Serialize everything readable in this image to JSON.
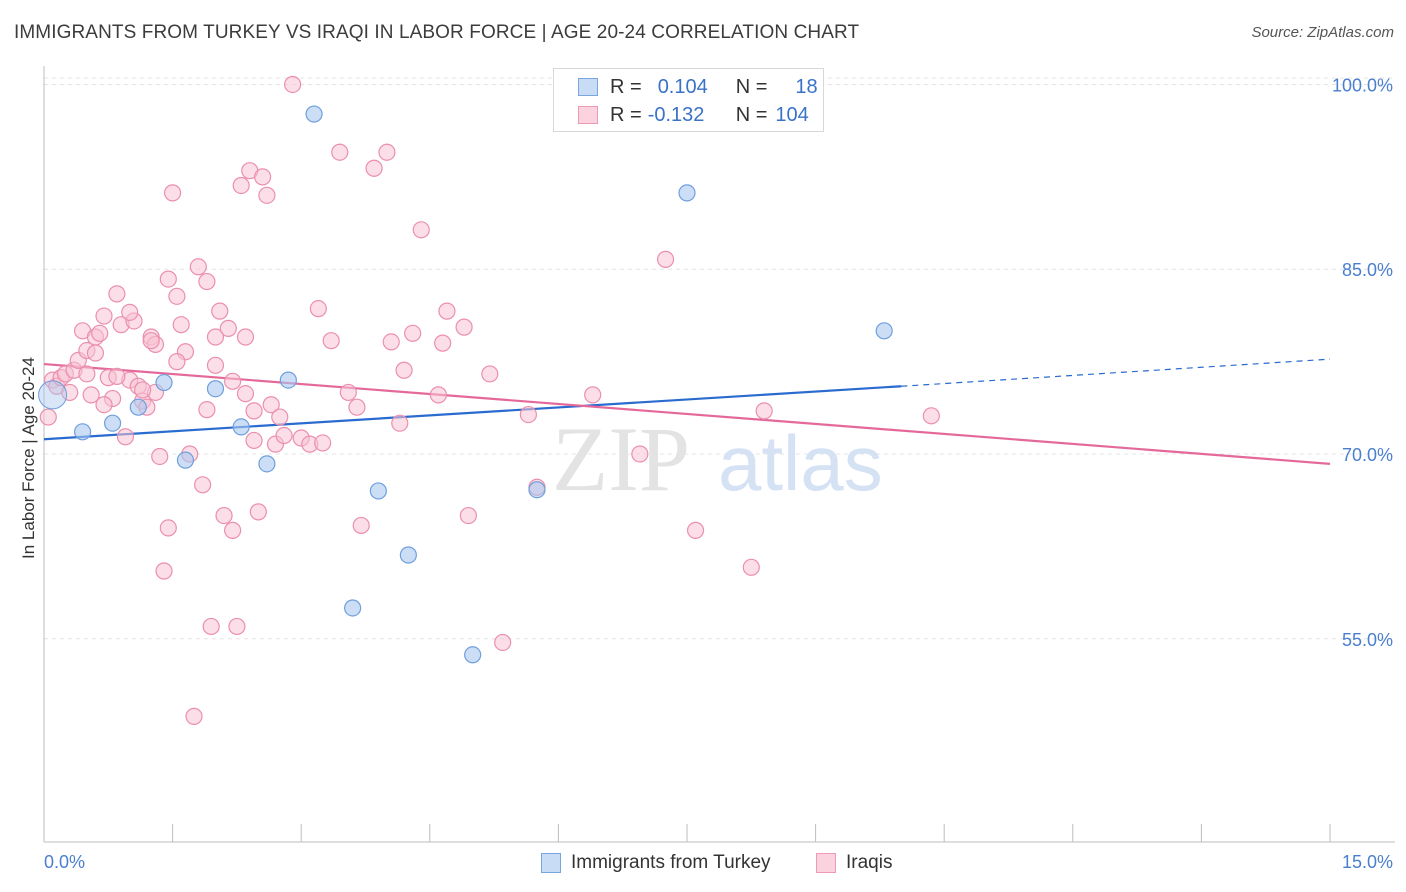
{
  "title": "IMMIGRANTS FROM TURKEY VS IRAQI IN LABOR FORCE | AGE 20-24 CORRELATION CHART",
  "source": "Source: ZipAtlas.com",
  "watermark": {
    "zip": "ZIP",
    "atlas": "atlas"
  },
  "legend": {
    "rows": [
      {
        "r_label": "R =",
        "r_value": "0.104",
        "n_label": "N =",
        "n_value": "18",
        "color": "#a9c8f0"
      },
      {
        "r_label": "R =",
        "r_value": "-0.132",
        "n_label": "N =",
        "n_value": "104",
        "color": "#f7b8cc"
      }
    ]
  },
  "bottom_legend": [
    {
      "label": "Immigrants from Turkey",
      "color": "#a9c8f0"
    },
    {
      "label": "Iraqis",
      "color": "#f7b8cc"
    }
  ],
  "chart_data": {
    "type": "scatter",
    "title": "IMMIGRANTS FROM TURKEY VS IRAQI IN LABOR FORCE | AGE 20-24 CORRELATION CHART",
    "xlabel": "",
    "ylabel": "In Labor Force | Age 20-24",
    "xlim": [
      0,
      15
    ],
    "ylim": [
      38.5,
      101.5
    ],
    "x_tick_labels": [
      "0.0%",
      "15.0%"
    ],
    "y_ticks": [
      55,
      70,
      85,
      100
    ],
    "y_tick_labels": [
      "55.0%",
      "70.0%",
      "85.0%",
      "100.0%"
    ],
    "grid": true,
    "colors": {
      "turkey_fill": "#a9c8f0",
      "turkey_stroke": "#6f9fdc",
      "turkey_line": "#2a6bcf",
      "iraq_fill": "#f7c3d3",
      "iraq_stroke": "#eb8fae",
      "iraq_line": "#e4699a"
    },
    "series": [
      {
        "name": "Immigrants from Turkey",
        "points": [
          [
            0.1,
            74.8
          ],
          [
            0.45,
            71.8
          ],
          [
            0.8,
            72.5
          ],
          [
            1.1,
            73.8
          ],
          [
            1.4,
            75.8
          ],
          [
            1.65,
            69.5
          ],
          [
            2.0,
            75.3
          ],
          [
            2.3,
            72.2
          ],
          [
            2.6,
            69.2
          ],
          [
            2.85,
            76.0
          ],
          [
            3.15,
            97.6
          ],
          [
            3.6,
            57.5
          ],
          [
            3.9,
            67.0
          ],
          [
            4.25,
            61.8
          ],
          [
            5.0,
            53.7
          ],
          [
            5.75,
            67.1
          ],
          [
            7.5,
            91.2
          ],
          [
            9.8,
            80.0
          ]
        ],
        "trend": {
          "x0": 0.0,
          "y0": 71.2,
          "x1": 10.0,
          "y1": 75.5,
          "dashed_to_x": 15.0,
          "dashed_to_y": 77.7
        }
      },
      {
        "name": "Iraqis",
        "points": [
          [
            0.05,
            73.0
          ],
          [
            0.1,
            76.0
          ],
          [
            0.15,
            75.5
          ],
          [
            0.2,
            76.2
          ],
          [
            0.25,
            76.5
          ],
          [
            0.3,
            75.0
          ],
          [
            0.35,
            76.8
          ],
          [
            0.4,
            77.6
          ],
          [
            0.45,
            80.0
          ],
          [
            0.5,
            78.4
          ],
          [
            0.55,
            74.8
          ],
          [
            0.6,
            79.5
          ],
          [
            0.65,
            79.8
          ],
          [
            0.7,
            81.2
          ],
          [
            0.75,
            76.2
          ],
          [
            0.8,
            74.5
          ],
          [
            0.85,
            83.0
          ],
          [
            0.9,
            80.5
          ],
          [
            0.95,
            71.4
          ],
          [
            1.0,
            76.0
          ],
          [
            1.05,
            80.8
          ],
          [
            1.1,
            75.5
          ],
          [
            1.15,
            74.3
          ],
          [
            1.2,
            73.8
          ],
          [
            1.25,
            79.5
          ],
          [
            1.3,
            75.0
          ],
          [
            1.35,
            69.8
          ],
          [
            1.4,
            60.5
          ],
          [
            1.45,
            64.0
          ],
          [
            1.5,
            91.2
          ],
          [
            1.55,
            82.8
          ],
          [
            1.6,
            80.5
          ],
          [
            1.65,
            78.3
          ],
          [
            1.7,
            70.0
          ],
          [
            1.75,
            48.7
          ],
          [
            1.8,
            85.2
          ],
          [
            1.85,
            67.5
          ],
          [
            1.9,
            84.0
          ],
          [
            1.95,
            56.0
          ],
          [
            2.0,
            77.2
          ],
          [
            2.05,
            81.6
          ],
          [
            2.1,
            65.0
          ],
          [
            2.15,
            80.2
          ],
          [
            2.2,
            63.8
          ],
          [
            2.25,
            56.0
          ],
          [
            2.3,
            91.8
          ],
          [
            2.35,
            79.5
          ],
          [
            2.4,
            93.0
          ],
          [
            2.45,
            73.5
          ],
          [
            2.5,
            65.3
          ],
          [
            2.55,
            92.5
          ],
          [
            2.6,
            91.0
          ],
          [
            2.65,
            74.0
          ],
          [
            2.7,
            70.8
          ],
          [
            2.8,
            71.5
          ],
          [
            2.9,
            100.0
          ],
          [
            3.0,
            71.3
          ],
          [
            3.1,
            70.8
          ],
          [
            3.2,
            81.8
          ],
          [
            3.35,
            79.2
          ],
          [
            3.45,
            94.5
          ],
          [
            3.55,
            75.0
          ],
          [
            3.7,
            64.2
          ],
          [
            3.85,
            93.2
          ],
          [
            4.0,
            94.5
          ],
          [
            4.2,
            76.8
          ],
          [
            4.3,
            79.8
          ],
          [
            4.4,
            88.2
          ],
          [
            4.6,
            74.8
          ],
          [
            4.65,
            79.0
          ],
          [
            4.7,
            81.6
          ],
          [
            4.9,
            80.3
          ],
          [
            4.95,
            65.0
          ],
          [
            5.2,
            76.5
          ],
          [
            5.35,
            54.7
          ],
          [
            5.65,
            73.2
          ],
          [
            5.75,
            67.3
          ],
          [
            6.4,
            74.8
          ],
          [
            6.95,
            70.0
          ],
          [
            7.25,
            85.8
          ],
          [
            7.6,
            63.8
          ],
          [
            8.25,
            60.8
          ],
          [
            8.4,
            73.5
          ],
          [
            10.35,
            73.1
          ],
          [
            0.6,
            78.2
          ],
          [
            0.7,
            74.0
          ],
          [
            1.15,
            75.2
          ],
          [
            1.3,
            78.9
          ],
          [
            1.45,
            84.2
          ],
          [
            1.9,
            73.6
          ],
          [
            2.2,
            75.9
          ],
          [
            2.45,
            71.1
          ],
          [
            2.75,
            73.0
          ],
          [
            3.25,
            70.9
          ],
          [
            3.65,
            73.8
          ],
          [
            4.05,
            79.1
          ],
          [
            4.15,
            72.5
          ],
          [
            1.0,
            81.5
          ],
          [
            1.25,
            79.2
          ],
          [
            2.0,
            79.5
          ],
          [
            2.35,
            74.9
          ],
          [
            0.85,
            76.3
          ],
          [
            0.5,
            76.5
          ],
          [
            1.55,
            77.5
          ]
        ],
        "trend": {
          "x0": 0.0,
          "y0": 77.3,
          "x1": 15.0,
          "y1": 69.2
        }
      }
    ]
  }
}
